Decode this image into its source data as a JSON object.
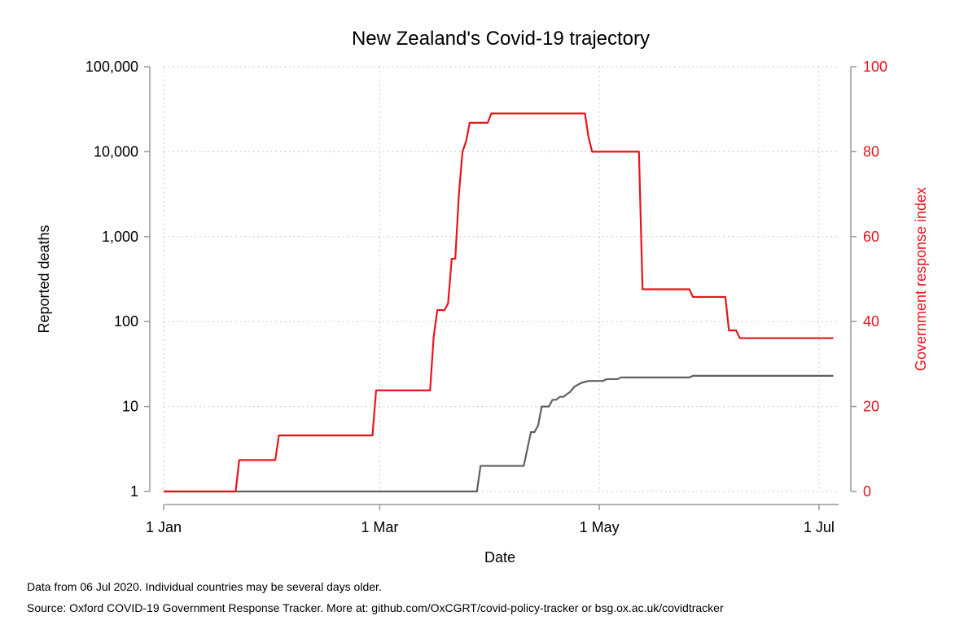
{
  "chart_data": {
    "type": "line",
    "title": "New Zealand's Covid-19 trajectory",
    "xlabel": "Date",
    "ylabel": "Reported deaths",
    "ylabel_right": "Government response index",
    "x_ticks": [
      "1 Jan",
      "1 Mar",
      "1 May",
      "1 Jul"
    ],
    "x_range": [
      "2020-01-01",
      "2020-07-06"
    ],
    "y_left": {
      "scale": "log",
      "range": [
        1,
        100000
      ],
      "ticks": [
        "1",
        "10",
        "100",
        "1,000",
        "10,000",
        "100,000"
      ]
    },
    "y_right": {
      "scale": "linear",
      "range": [
        0,
        100
      ],
      "ticks": [
        "0",
        "20",
        "40",
        "60",
        "80",
        "100"
      ]
    },
    "grid": true,
    "colors": {
      "deaths": "#606060",
      "response": "#e8141c",
      "axis": "#999999",
      "grid": "#bbbbbb"
    },
    "series": [
      {
        "axis": "left",
        "points": [
          [
            "2020-01-01",
            1
          ],
          [
            "2020-03-28",
            1
          ],
          [
            "2020-03-29",
            2
          ],
          [
            "2020-04-10",
            2
          ],
          [
            "2020-04-12",
            5
          ],
          [
            "2020-04-13",
            5
          ],
          [
            "2020-04-14",
            6
          ],
          [
            "2020-04-15",
            10
          ],
          [
            "2020-04-17",
            10
          ],
          [
            "2020-04-18",
            12
          ],
          [
            "2020-04-19",
            12
          ],
          [
            "2020-04-20",
            13
          ],
          [
            "2020-04-21",
            13
          ],
          [
            "2020-04-22",
            14
          ],
          [
            "2020-04-23",
            15
          ],
          [
            "2020-04-24",
            17
          ],
          [
            "2020-04-25",
            18
          ],
          [
            "2020-04-26",
            19
          ],
          [
            "2020-04-28",
            20
          ],
          [
            "2020-05-02",
            20
          ],
          [
            "2020-05-03",
            21
          ],
          [
            "2020-05-06",
            21
          ],
          [
            "2020-05-07",
            22
          ],
          [
            "2020-05-26",
            22
          ],
          [
            "2020-05-27",
            23
          ],
          [
            "2020-07-05",
            23
          ]
        ]
      },
      {
        "axis": "right",
        "points": [
          [
            "2020-01-01",
            0
          ],
          [
            "2020-01-21",
            0
          ],
          [
            "2020-01-22",
            7.4
          ],
          [
            "2020-02-01",
            7.4
          ],
          [
            "2020-02-02",
            13.2
          ],
          [
            "2020-02-28",
            13.2
          ],
          [
            "2020-02-29",
            23.8
          ],
          [
            "2020-03-15",
            23.8
          ],
          [
            "2020-03-16",
            36.5
          ],
          [
            "2020-03-17",
            42.7
          ],
          [
            "2020-03-18",
            42.7
          ],
          [
            "2020-03-19",
            42.7
          ],
          [
            "2020-03-20",
            44.3
          ],
          [
            "2020-03-21",
            54.8
          ],
          [
            "2020-03-22",
            54.8
          ],
          [
            "2020-03-23",
            70.0
          ],
          [
            "2020-03-24",
            80.0
          ],
          [
            "2020-03-25",
            82.5
          ],
          [
            "2020-03-26",
            86.8
          ],
          [
            "2020-03-31",
            86.8
          ],
          [
            "2020-04-01",
            89.0
          ],
          [
            "2020-04-27",
            89.0
          ],
          [
            "2020-04-28",
            83.4
          ],
          [
            "2020-04-29",
            80.0
          ],
          [
            "2020-05-12",
            80.0
          ],
          [
            "2020-05-13",
            47.6
          ],
          [
            "2020-05-26",
            47.6
          ],
          [
            "2020-05-27",
            45.8
          ],
          [
            "2020-06-05",
            45.8
          ],
          [
            "2020-06-06",
            37.9
          ],
          [
            "2020-06-08",
            37.9
          ],
          [
            "2020-06-09",
            36.1
          ],
          [
            "2020-07-05",
            36.1
          ]
        ]
      }
    ]
  },
  "notes": {
    "line1": "Data from 06 Jul 2020. Individual countries may be several days older.",
    "line2": "Source: Oxford COVID-19 Government Response Tracker. More at: github.com/OxCGRT/covid-policy-tracker or bsg.ox.ac.uk/covidtracker"
  }
}
